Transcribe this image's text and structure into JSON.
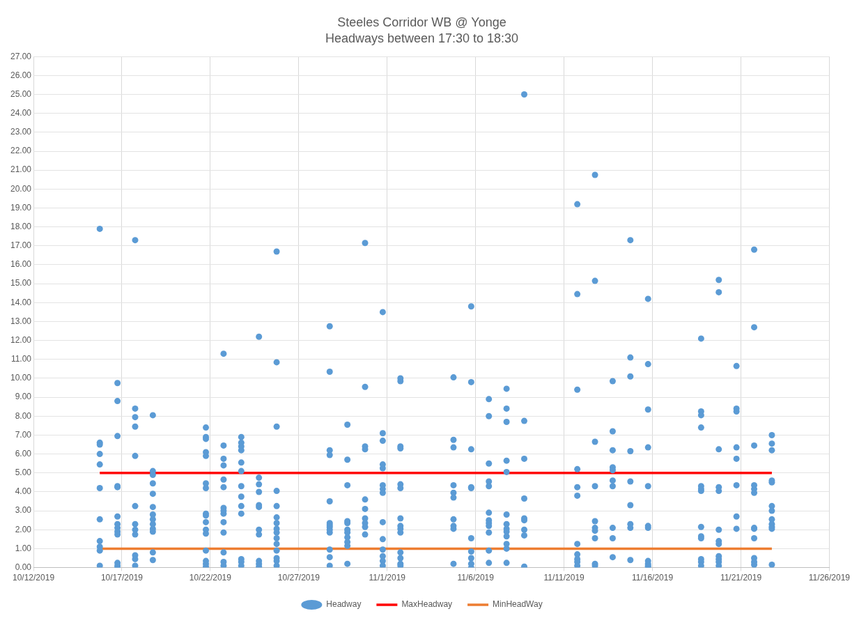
{
  "chart_data": {
    "type": "scatter",
    "title": "Steeles Corridor WB @ Yonge",
    "subtitle": "Headways between 17:30 to 18:30",
    "xlim": [
      "2019-10-12",
      "2019-11-26"
    ],
    "xticks": [
      {
        "value": "2019-10-12",
        "label": "10/12/2019"
      },
      {
        "value": "2019-10-17",
        "label": "10/17/2019"
      },
      {
        "value": "2019-10-22",
        "label": "10/22/2019"
      },
      {
        "value": "2019-10-27",
        "label": "10/27/2019"
      },
      {
        "value": "2019-11-01",
        "label": "11/1/2019"
      },
      {
        "value": "2019-11-06",
        "label": "11/6/2019"
      },
      {
        "value": "2019-11-11",
        "label": "11/11/2019"
      },
      {
        "value": "2019-11-16",
        "label": "11/16/2019"
      },
      {
        "value": "2019-11-21",
        "label": "11/21/2019"
      },
      {
        "value": "2019-11-26",
        "label": "11/26/2019"
      }
    ],
    "ylim": [
      0,
      27
    ],
    "yticks": [
      {
        "value": 0,
        "label": "0.00"
      },
      {
        "value": 1,
        "label": "1.00"
      },
      {
        "value": 2,
        "label": "2.00"
      },
      {
        "value": 3,
        "label": "3.00"
      },
      {
        "value": 4,
        "label": "4.00"
      },
      {
        "value": 5,
        "label": "5.00"
      },
      {
        "value": 6,
        "label": "6.00"
      },
      {
        "value": 7,
        "label": "7.00"
      },
      {
        "value": 8,
        "label": "8.00"
      },
      {
        "value": 9,
        "label": "9.00"
      },
      {
        "value": 10,
        "label": "10.00"
      },
      {
        "value": 11,
        "label": "11.00"
      },
      {
        "value": 12,
        "label": "12.00"
      },
      {
        "value": 13,
        "label": "13.00"
      },
      {
        "value": 14,
        "label": "14.00"
      },
      {
        "value": 15,
        "label": "15.00"
      },
      {
        "value": 16,
        "label": "16.00"
      },
      {
        "value": 17,
        "label": "17.00"
      },
      {
        "value": 18,
        "label": "18.00"
      },
      {
        "value": 19,
        "label": "19.00"
      },
      {
        "value": 20,
        "label": "20.00"
      },
      {
        "value": 21,
        "label": "21.00"
      },
      {
        "value": 22,
        "label": "22.00"
      },
      {
        "value": 23,
        "label": "23.00"
      },
      {
        "value": 24,
        "label": "24.00"
      },
      {
        "value": 25,
        "label": "25.00"
      },
      {
        "value": 26,
        "label": "26.00"
      },
      {
        "value": 27,
        "label": "27.00"
      }
    ],
    "grid": true,
    "legend": "bottom",
    "marker": "circle",
    "series": [
      {
        "name": "Headway",
        "type": "scatter",
        "color": "#5b9bd5",
        "x": [
          "2019-10-15T18:00",
          "2019-10-15T18:00",
          "2019-10-15T18:00",
          "2019-10-15T18:00",
          "2019-10-15T18:00",
          "2019-10-15T18:00",
          "2019-10-15T18:00",
          "2019-10-15T18:00",
          "2019-10-15T18:00",
          "2019-10-15T18:00",
          "2019-10-15T18:00",
          "2019-10-16T18:00",
          "2019-10-16T18:00",
          "2019-10-16T18:00",
          "2019-10-16T18:00",
          "2019-10-16T18:00",
          "2019-10-16T18:00",
          "2019-10-16T18:00",
          "2019-10-16T18:00",
          "2019-10-16T18:00",
          "2019-10-16T18:00",
          "2019-10-16T18:00",
          "2019-10-16T18:00",
          "2019-10-16T18:00",
          "2019-10-17T18:00",
          "2019-10-17T18:00",
          "2019-10-17T18:00",
          "2019-10-17T18:00",
          "2019-10-17T18:00",
          "2019-10-17T18:00",
          "2019-10-17T18:00",
          "2019-10-17T18:00",
          "2019-10-17T18:00",
          "2019-10-17T18:00",
          "2019-10-17T18:00",
          "2019-10-17T18:00",
          "2019-10-18T18:00",
          "2019-10-18T18:00",
          "2019-10-18T18:00",
          "2019-10-18T18:00",
          "2019-10-18T18:00",
          "2019-10-18T18:00",
          "2019-10-18T18:00",
          "2019-10-18T18:00",
          "2019-10-18T18:00",
          "2019-10-18T18:00",
          "2019-10-18T18:00",
          "2019-10-18T18:00",
          "2019-10-18T18:00",
          "2019-10-21T18:00",
          "2019-10-21T18:00",
          "2019-10-21T18:00",
          "2019-10-21T18:00",
          "2019-10-21T18:00",
          "2019-10-21T18:00",
          "2019-10-21T18:00",
          "2019-10-21T18:00",
          "2019-10-21T18:00",
          "2019-10-21T18:00",
          "2019-10-21T18:00",
          "2019-10-21T18:00",
          "2019-10-21T18:00",
          "2019-10-21T18:00",
          "2019-10-21T18:00",
          "2019-10-21T18:00",
          "2019-10-22T18:00",
          "2019-10-22T18:00",
          "2019-10-22T18:00",
          "2019-10-22T18:00",
          "2019-10-22T18:00",
          "2019-10-22T18:00",
          "2019-10-22T18:00",
          "2019-10-22T18:00",
          "2019-10-22T18:00",
          "2019-10-22T18:00",
          "2019-10-22T18:00",
          "2019-10-22T18:00",
          "2019-10-22T18:00",
          "2019-10-22T18:00",
          "2019-10-23T18:00",
          "2019-10-23T18:00",
          "2019-10-23T18:00",
          "2019-10-23T18:00",
          "2019-10-23T18:00",
          "2019-10-23T18:00",
          "2019-10-23T18:00",
          "2019-10-23T18:00",
          "2019-10-23T18:00",
          "2019-10-23T18:00",
          "2019-10-23T18:00",
          "2019-10-23T18:00",
          "2019-10-23T18:00",
          "2019-10-24T18:00",
          "2019-10-24T18:00",
          "2019-10-24T18:00",
          "2019-10-24T18:00",
          "2019-10-24T18:00",
          "2019-10-24T18:00",
          "2019-10-24T18:00",
          "2019-10-24T18:00",
          "2019-10-24T18:00",
          "2019-10-24T18:00",
          "2019-10-24T18:00",
          "2019-10-25T18:00",
          "2019-10-25T18:00",
          "2019-10-25T18:00",
          "2019-10-25T18:00",
          "2019-10-25T18:00",
          "2019-10-25T18:00",
          "2019-10-25T18:00",
          "2019-10-25T18:00",
          "2019-10-25T18:00",
          "2019-10-25T18:00",
          "2019-10-25T18:00",
          "2019-10-25T18:00",
          "2019-10-25T18:00",
          "2019-10-25T18:00",
          "2019-10-25T18:00",
          "2019-10-28T18:00",
          "2019-10-28T18:00",
          "2019-10-28T18:00",
          "2019-10-28T18:00",
          "2019-10-28T18:00",
          "2019-10-28T18:00",
          "2019-10-28T18:00",
          "2019-10-28T18:00",
          "2019-10-28T18:00",
          "2019-10-28T18:00",
          "2019-10-28T18:00",
          "2019-10-28T18:00",
          "2019-10-28T18:00",
          "2019-10-29T18:00",
          "2019-10-29T18:00",
          "2019-10-29T18:00",
          "2019-10-29T18:00",
          "2019-10-29T18:00",
          "2019-10-29T18:00",
          "2019-10-29T18:00",
          "2019-10-29T18:00",
          "2019-10-29T18:00",
          "2019-10-29T18:00",
          "2019-10-29T18:00",
          "2019-10-30T18:00",
          "2019-10-30T18:00",
          "2019-10-30T18:00",
          "2019-10-30T18:00",
          "2019-10-30T18:00",
          "2019-10-30T18:00",
          "2019-10-30T18:00",
          "2019-10-30T18:00",
          "2019-10-30T18:00",
          "2019-10-30T18:00",
          "2019-10-31T18:00",
          "2019-10-31T18:00",
          "2019-10-31T18:00",
          "2019-10-31T18:00",
          "2019-10-31T18:00",
          "2019-10-31T18:00",
          "2019-10-31T18:00",
          "2019-10-31T18:00",
          "2019-10-31T18:00",
          "2019-10-31T18:00",
          "2019-10-31T18:00",
          "2019-10-31T18:00",
          "2019-10-31T18:00",
          "2019-10-31T18:00",
          "2019-11-01T18:00",
          "2019-11-01T18:00",
          "2019-11-01T18:00",
          "2019-11-01T18:00",
          "2019-11-01T18:00",
          "2019-11-01T18:00",
          "2019-11-01T18:00",
          "2019-11-01T18:00",
          "2019-11-01T18:00",
          "2019-11-01T18:00",
          "2019-11-01T18:00",
          "2019-11-01T18:00",
          "2019-11-01T18:00",
          "2019-11-01T18:00",
          "2019-11-04T18:00",
          "2019-11-04T18:00",
          "2019-11-04T18:00",
          "2019-11-04T18:00",
          "2019-11-04T18:00",
          "2019-11-04T18:00",
          "2019-11-04T18:00",
          "2019-11-04T18:00",
          "2019-11-04T18:00",
          "2019-11-04T18:00",
          "2019-11-05T18:00",
          "2019-11-05T18:00",
          "2019-11-05T18:00",
          "2019-11-05T18:00",
          "2019-11-05T18:00",
          "2019-11-05T18:00",
          "2019-11-05T18:00",
          "2019-11-05T18:00",
          "2019-11-05T18:00",
          "2019-11-05T18:00",
          "2019-11-06T18:00",
          "2019-11-06T18:00",
          "2019-11-06T18:00",
          "2019-11-06T18:00",
          "2019-11-06T18:00",
          "2019-11-06T18:00",
          "2019-11-06T18:00",
          "2019-11-06T18:00",
          "2019-11-06T18:00",
          "2019-11-06T18:00",
          "2019-11-06T18:00",
          "2019-11-06T18:00",
          "2019-11-07T18:00",
          "2019-11-07T18:00",
          "2019-11-07T18:00",
          "2019-11-07T18:00",
          "2019-11-07T18:00",
          "2019-11-07T18:00",
          "2019-11-07T18:00",
          "2019-11-07T18:00",
          "2019-11-07T18:00",
          "2019-11-07T18:00",
          "2019-11-07T18:00",
          "2019-11-07T18:00",
          "2019-11-07T18:00",
          "2019-11-08T18:00",
          "2019-11-08T18:00",
          "2019-11-08T18:00",
          "2019-11-08T18:00",
          "2019-11-08T18:00",
          "2019-11-08T18:00",
          "2019-11-08T18:00",
          "2019-11-08T18:00",
          "2019-11-08T18:00",
          "2019-11-11T18:00",
          "2019-11-11T18:00",
          "2019-11-11T18:00",
          "2019-11-11T18:00",
          "2019-11-11T18:00",
          "2019-11-11T18:00",
          "2019-11-11T18:00",
          "2019-11-11T18:00",
          "2019-11-11T18:00",
          "2019-11-11T18:00",
          "2019-11-11T18:00",
          "2019-11-12T18:00",
          "2019-11-12T18:00",
          "2019-11-12T18:00",
          "2019-11-12T18:00",
          "2019-11-12T18:00",
          "2019-11-12T18:00",
          "2019-11-12T18:00",
          "2019-11-12T18:00",
          "2019-11-12T18:00",
          "2019-11-12T18:00",
          "2019-11-13T18:00",
          "2019-11-13T18:00",
          "2019-11-13T18:00",
          "2019-11-13T18:00",
          "2019-11-13T18:00",
          "2019-11-13T18:00",
          "2019-11-13T18:00",
          "2019-11-13T18:00",
          "2019-11-13T18:00",
          "2019-11-13T18:00",
          "2019-11-14T18:00",
          "2019-11-14T18:00",
          "2019-11-14T18:00",
          "2019-11-14T18:00",
          "2019-11-14T18:00",
          "2019-11-14T18:00",
          "2019-11-14T18:00",
          "2019-11-14T18:00",
          "2019-11-14T18:00",
          "2019-11-15T18:00",
          "2019-11-15T18:00",
          "2019-11-15T18:00",
          "2019-11-15T18:00",
          "2019-11-15T18:00",
          "2019-11-15T18:00",
          "2019-11-15T18:00",
          "2019-11-15T18:00",
          "2019-11-15T18:00",
          "2019-11-15T18:00",
          "2019-11-15T18:00",
          "2019-11-18T18:00",
          "2019-11-18T18:00",
          "2019-11-18T18:00",
          "2019-11-18T18:00",
          "2019-11-18T18:00",
          "2019-11-18T18:00",
          "2019-11-18T18:00",
          "2019-11-18T18:00",
          "2019-11-18T18:00",
          "2019-11-18T18:00",
          "2019-11-18T18:00",
          "2019-11-18T18:00",
          "2019-11-18T18:00",
          "2019-11-19T18:00",
          "2019-11-19T18:00",
          "2019-11-19T18:00",
          "2019-11-19T18:00",
          "2019-11-19T18:00",
          "2019-11-19T18:00",
          "2019-11-19T18:00",
          "2019-11-19T18:00",
          "2019-11-19T18:00",
          "2019-11-19T18:00",
          "2019-11-19T18:00",
          "2019-11-19T18:00",
          "2019-11-20T18:00",
          "2019-11-20T18:00",
          "2019-11-20T18:00",
          "2019-11-20T18:00",
          "2019-11-20T18:00",
          "2019-11-20T18:00",
          "2019-11-20T18:00",
          "2019-11-20T18:00",
          "2019-11-21T18:00",
          "2019-11-21T18:00",
          "2019-11-21T18:00",
          "2019-11-21T18:00",
          "2019-11-21T18:00",
          "2019-11-21T18:00",
          "2019-11-21T18:00",
          "2019-11-21T18:00",
          "2019-11-21T18:00",
          "2019-11-21T18:00",
          "2019-11-21T18:00",
          "2019-11-21T18:00",
          "2019-11-22T18:00",
          "2019-11-22T18:00",
          "2019-11-22T18:00",
          "2019-11-22T18:00",
          "2019-11-22T18:00",
          "2019-11-22T18:00",
          "2019-11-22T18:00",
          "2019-11-22T18:00",
          "2019-11-22T18:00",
          "2019-11-22T18:00",
          "2019-11-22T18:00",
          "2019-11-22T18:00"
        ],
        "values": [
          17.9,
          6.6,
          6.5,
          6.0,
          5.45,
          4.2,
          2.55,
          1.4,
          1.1,
          0.9,
          0.1,
          9.75,
          8.8,
          6.95,
          4.3,
          4.25,
          2.7,
          2.3,
          2.1,
          1.9,
          1.75,
          0.25,
          0.1,
          0.0,
          17.3,
          8.4,
          7.95,
          7.45,
          5.9,
          3.25,
          2.3,
          2.0,
          1.75,
          0.65,
          0.45,
          0.1,
          8.05,
          5.1,
          4.9,
          4.45,
          3.9,
          3.2,
          2.8,
          2.55,
          2.3,
          2.05,
          1.9,
          0.8,
          0.4,
          7.4,
          6.9,
          6.8,
          6.1,
          5.9,
          4.45,
          4.2,
          2.85,
          2.75,
          2.4,
          2.0,
          1.8,
          0.9,
          0.35,
          0.2,
          0.05,
          11.3,
          6.45,
          5.75,
          5.4,
          4.65,
          4.25,
          3.15,
          3.0,
          2.85,
          2.4,
          1.85,
          0.8,
          0.3,
          0.1,
          6.9,
          6.6,
          6.4,
          6.2,
          5.55,
          5.1,
          4.3,
          3.75,
          3.25,
          2.85,
          0.45,
          0.3,
          0.1,
          12.2,
          4.75,
          4.4,
          4.0,
          3.3,
          3.2,
          2.0,
          1.75,
          0.35,
          0.2,
          0.05,
          16.7,
          10.85,
          7.45,
          4.05,
          3.25,
          2.65,
          2.35,
          2.05,
          1.85,
          1.55,
          1.25,
          0.9,
          0.5,
          0.35,
          0.1,
          12.75,
          10.35,
          6.2,
          5.95,
          3.5,
          2.35,
          2.25,
          2.15,
          2.0,
          1.85,
          0.95,
          0.55,
          0.1,
          7.55,
          5.7,
          4.35,
          2.45,
          2.35,
          2.0,
          1.85,
          1.6,
          1.35,
          1.15,
          0.2,
          17.15,
          9.55,
          6.4,
          6.25,
          3.6,
          3.1,
          2.6,
          2.35,
          2.15,
          1.75,
          13.5,
          7.1,
          6.7,
          5.45,
          5.25,
          4.35,
          4.15,
          3.95,
          2.4,
          1.5,
          0.95,
          0.6,
          0.35,
          0.1,
          10.0,
          9.85,
          6.4,
          6.3,
          4.4,
          4.2,
          2.6,
          2.2,
          2.05,
          1.85,
          0.8,
          0.5,
          0.2,
          0.1,
          10.05,
          6.75,
          6.35,
          4.35,
          3.95,
          3.7,
          2.55,
          2.2,
          2.05,
          0.2,
          13.8,
          9.8,
          6.25,
          4.25,
          4.2,
          1.55,
          0.85,
          0.5,
          0.2,
          0.0,
          8.9,
          8.0,
          5.5,
          4.55,
          4.3,
          2.9,
          2.5,
          2.35,
          2.2,
          1.85,
          0.9,
          0.25,
          9.45,
          8.4,
          7.7,
          5.65,
          5.05,
          2.8,
          2.3,
          2.05,
          1.9,
          1.65,
          1.25,
          1.0,
          0.25,
          25.0,
          7.75,
          5.75,
          3.65,
          2.6,
          2.5,
          2.0,
          1.7,
          0.05,
          19.2,
          14.45,
          9.4,
          5.2,
          4.25,
          3.8,
          1.25,
          0.7,
          0.45,
          0.3,
          0.1,
          20.75,
          15.15,
          6.65,
          4.3,
          2.45,
          2.1,
          1.95,
          1.55,
          0.2,
          0.1,
          9.85,
          7.2,
          6.2,
          5.3,
          5.15,
          4.6,
          4.3,
          2.1,
          1.55,
          0.55,
          17.3,
          11.1,
          10.1,
          6.15,
          4.55,
          3.3,
          2.3,
          2.1,
          0.4,
          14.2,
          10.75,
          8.35,
          6.35,
          4.3,
          2.2,
          2.1,
          0.35,
          0.2,
          0.1,
          0.05,
          12.1,
          8.25,
          8.05,
          7.4,
          4.3,
          4.15,
          4.05,
          2.15,
          1.65,
          1.55,
          0.45,
          0.3,
          0.1,
          15.2,
          14.55,
          6.25,
          4.25,
          4.05,
          2.0,
          1.4,
          1.25,
          0.6,
          0.45,
          0.3,
          0.1,
          10.65,
          8.4,
          8.25,
          6.35,
          5.75,
          4.35,
          2.7,
          2.05,
          16.8,
          12.7,
          6.45,
          4.35,
          4.15,
          3.95,
          2.1,
          2.05,
          1.55,
          0.5,
          0.3,
          0.15,
          7.0,
          6.55,
          6.2,
          4.6,
          4.5,
          3.25,
          3.0,
          2.55,
          2.3,
          2.15,
          2.05,
          0.15
        ]
      },
      {
        "name": "MaxHeadway",
        "type": "line",
        "color": "#ff0000",
        "marker": "none",
        "x": [
          "2019-10-15T18:00",
          "2019-11-22T18:00"
        ],
        "values": [
          5,
          5
        ]
      },
      {
        "name": "MinHeadWay",
        "type": "line",
        "color": "#ed7d31",
        "marker": "none",
        "x": [
          "2019-10-15T18:00",
          "2019-11-22T18:00"
        ],
        "values": [
          1,
          1
        ]
      }
    ]
  }
}
